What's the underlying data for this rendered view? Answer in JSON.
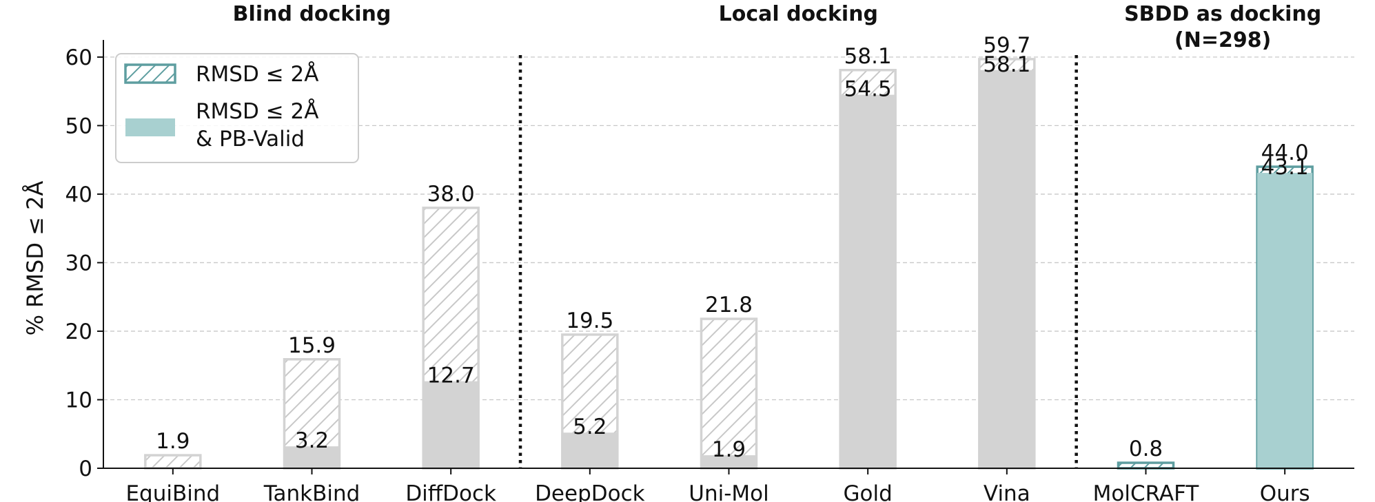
{
  "chart_data": {
    "type": "bar",
    "categories": [
      "EquiBind",
      "TankBind",
      "DiffDock",
      "DeepDock",
      "Uni-Mol",
      "Gold",
      "Vina",
      "MolCRAFT",
      "Ours"
    ],
    "series": [
      {
        "name": "RMSD ≤ 2Å",
        "values": [
          1.9,
          15.9,
          38.0,
          19.5,
          21.8,
          58.1,
          59.7,
          0.8,
          44.0
        ]
      },
      {
        "name": "RMSD ≤ 2Å & PB-Valid",
        "values": [
          null,
          3.2,
          12.7,
          5.2,
          1.9,
          54.5,
          58.1,
          null,
          43.1
        ]
      }
    ],
    "top_labels": [
      "1.9",
      "15.9",
      "38.0",
      "19.5",
      "21.8",
      "58.1",
      "59.7",
      "0.8",
      "44.0"
    ],
    "inner_labels": [
      "",
      "3.2",
      "12.7",
      "5.2",
      "1.9",
      "54.5",
      "58.1",
      "",
      "43.1"
    ],
    "highlight_categories": [
      "MolCRAFT",
      "Ours"
    ],
    "groups": [
      {
        "title": "Blind docking",
        "categories": [
          "EquiBind",
          "TankBind",
          "DiffDock"
        ]
      },
      {
        "title": "Local docking",
        "categories": [
          "DeepDock",
          "Uni-Mol",
          "Gold",
          "Vina"
        ]
      },
      {
        "title": "SBDD as docking\n(N=298)",
        "categories": [
          "MolCRAFT",
          "Ours"
        ]
      }
    ],
    "group_separators_after": [
      "DiffDock",
      "Vina"
    ],
    "ylabel": "% RMSD ≤ 2Å",
    "xlabel": "",
    "ylim": [
      0,
      62.5
    ],
    "yticks": [
      0,
      10,
      20,
      30,
      40,
      50,
      60
    ],
    "grid": "horizontal dashed",
    "legend": {
      "placement": "top-left",
      "entries": [
        "RMSD ≤ 2Å",
        "RMSD ≤ 2Å",
        "& PB-Valid"
      ]
    },
    "colors": {
      "gray_fill": "#d3d3d3",
      "gray_edge": "#d3d3d3",
      "hatch_gray": "#c8c8c8",
      "teal_fill": "#a8d0d0",
      "teal_edge": "#5e9ea0",
      "hatch_teal": "#5e9ea0",
      "grid": "#c8c8c8",
      "axis": "#111111"
    }
  }
}
